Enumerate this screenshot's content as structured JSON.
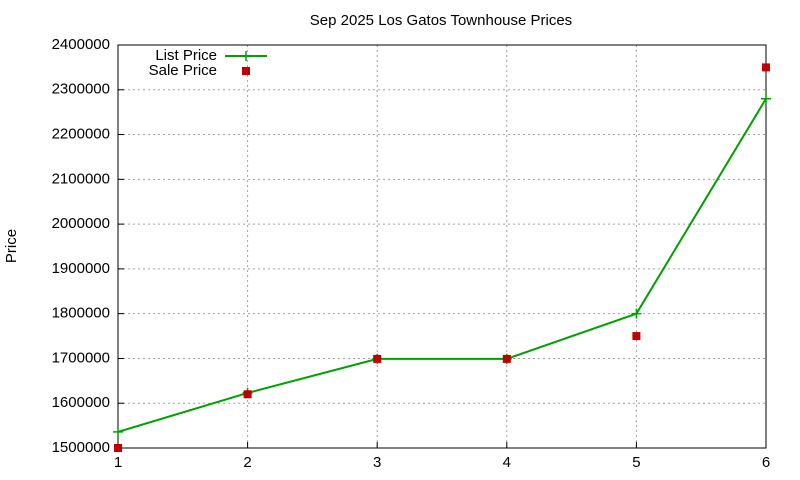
{
  "chart_data": {
    "type": "line",
    "title": "Sep 2025 Los Gatos Townhouse Prices",
    "ylabel": "Price",
    "x": [
      1,
      2,
      3,
      4,
      5,
      6
    ],
    "series": [
      {
        "name": "List Price",
        "color": "#00a000",
        "style": "linespoints",
        "values": [
          1536000,
          1623000,
          1699000,
          1699000,
          1800000,
          2280000
        ]
      },
      {
        "name": "Sale Price",
        "color": "#c00000",
        "style": "points",
        "values": [
          1500000,
          1620000,
          1699000,
          1699000,
          1750000,
          2350000
        ]
      }
    ],
    "xlim": [
      1,
      6
    ],
    "xticks": [
      1,
      2,
      3,
      4,
      5,
      6
    ],
    "ylim": [
      1500000,
      2400000
    ],
    "yticks": [
      1500000,
      1600000,
      1700000,
      1800000,
      1900000,
      2000000,
      2100000,
      2200000,
      2300000,
      2400000
    ],
    "grid": true,
    "legend": "top-left"
  }
}
